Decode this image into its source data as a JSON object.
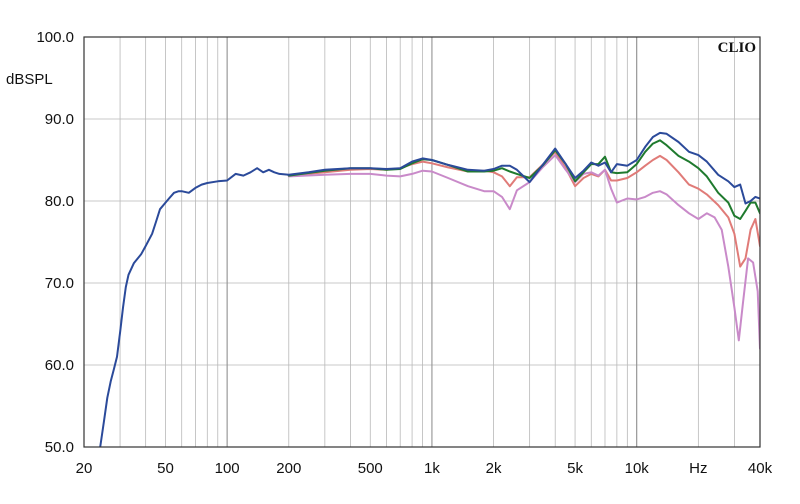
{
  "chart_data": {
    "type": "line",
    "brand": "CLIO",
    "ylabel": "dBSPL",
    "xunit": "Hz",
    "xscale": "log",
    "xlim": [
      20,
      40000
    ],
    "ylim": [
      50,
      100
    ],
    "grid": true,
    "ytick_labels": [
      "100.0",
      "90.0",
      "80.0",
      "70.0",
      "60.0",
      "50.0"
    ],
    "ytick_values": [
      100,
      90,
      80,
      70,
      60,
      50
    ],
    "xtick_labels": [
      "20",
      "50",
      "100",
      "200",
      "500",
      "1k",
      "2k",
      "5k",
      "10k",
      "Hz",
      "40k"
    ],
    "xtick_values": [
      20,
      50,
      100,
      200,
      500,
      1000,
      2000,
      5000,
      10000,
      20000,
      40000
    ],
    "series": [
      {
        "color": "#e07b78",
        "points": [
          [
            200,
            83.1
          ],
          [
            300,
            83.5
          ],
          [
            400,
            83.8
          ],
          [
            500,
            83.9
          ],
          [
            600,
            83.8
          ],
          [
            700,
            84.0
          ],
          [
            800,
            84.5
          ],
          [
            900,
            84.8
          ],
          [
            1000,
            84.6
          ],
          [
            1200,
            84.1
          ],
          [
            1500,
            83.6
          ],
          [
            1800,
            83.7
          ],
          [
            2000,
            83.5
          ],
          [
            2200,
            83.0
          ],
          [
            2400,
            81.8
          ],
          [
            2600,
            82.9
          ],
          [
            3000,
            82.9
          ],
          [
            3500,
            84.5
          ],
          [
            4000,
            86.0
          ],
          [
            4500,
            84.0
          ],
          [
            5000,
            81.8
          ],
          [
            5500,
            82.8
          ],
          [
            6000,
            83.3
          ],
          [
            6500,
            83.0
          ],
          [
            7000,
            83.8
          ],
          [
            7500,
            82.5
          ],
          [
            8000,
            82.5
          ],
          [
            9000,
            82.8
          ],
          [
            10000,
            83.5
          ],
          [
            11000,
            84.3
          ],
          [
            12000,
            85.0
          ],
          [
            13000,
            85.5
          ],
          [
            14000,
            85.0
          ],
          [
            16000,
            83.5
          ],
          [
            18000,
            82.0
          ],
          [
            20000,
            81.5
          ],
          [
            22000,
            80.8
          ],
          [
            25000,
            79.5
          ],
          [
            28000,
            78.0
          ],
          [
            30000,
            76.0
          ],
          [
            32000,
            72.0
          ],
          [
            34000,
            73.0
          ],
          [
            36000,
            76.5
          ],
          [
            38000,
            77.8
          ],
          [
            40000,
            74.5
          ]
        ]
      },
      {
        "color": "#c98ac9",
        "points": [
          [
            200,
            83.0
          ],
          [
            300,
            83.2
          ],
          [
            400,
            83.3
          ],
          [
            500,
            83.3
          ],
          [
            600,
            83.1
          ],
          [
            700,
            83.0
          ],
          [
            800,
            83.3
          ],
          [
            900,
            83.7
          ],
          [
            1000,
            83.6
          ],
          [
            1200,
            82.8
          ],
          [
            1500,
            81.8
          ],
          [
            1800,
            81.2
          ],
          [
            2000,
            81.2
          ],
          [
            2200,
            80.5
          ],
          [
            2400,
            79.0
          ],
          [
            2600,
            81.3
          ],
          [
            3000,
            82.3
          ],
          [
            3500,
            84.2
          ],
          [
            4000,
            85.6
          ],
          [
            4500,
            83.8
          ],
          [
            5000,
            82.3
          ],
          [
            5500,
            83.3
          ],
          [
            6000,
            83.5
          ],
          [
            6500,
            83.1
          ],
          [
            7000,
            83.8
          ],
          [
            7500,
            81.5
          ],
          [
            8000,
            79.8
          ],
          [
            9000,
            80.3
          ],
          [
            10000,
            80.2
          ],
          [
            11000,
            80.5
          ],
          [
            12000,
            81.0
          ],
          [
            13000,
            81.2
          ],
          [
            14000,
            80.8
          ],
          [
            16000,
            79.5
          ],
          [
            18000,
            78.5
          ],
          [
            20000,
            77.8
          ],
          [
            22000,
            78.5
          ],
          [
            24000,
            78.0
          ],
          [
            26000,
            76.5
          ],
          [
            28000,
            72.0
          ],
          [
            30000,
            67.0
          ],
          [
            31500,
            63.0
          ],
          [
            33000,
            67.5
          ],
          [
            35000,
            73.0
          ],
          [
            37000,
            72.5
          ],
          [
            39000,
            69.0
          ],
          [
            40000,
            62.0
          ]
        ]
      },
      {
        "color": "#1f7a2e",
        "points": [
          [
            200,
            83.1
          ],
          [
            300,
            83.7
          ],
          [
            400,
            84.0
          ],
          [
            500,
            84.0
          ],
          [
            600,
            83.8
          ],
          [
            700,
            83.9
          ],
          [
            800,
            84.6
          ],
          [
            900,
            85.1
          ],
          [
            1000,
            85.0
          ],
          [
            1200,
            84.4
          ],
          [
            1500,
            83.6
          ],
          [
            1800,
            83.6
          ],
          [
            2000,
            83.7
          ],
          [
            2200,
            84.0
          ],
          [
            2400,
            83.6
          ],
          [
            2600,
            83.3
          ],
          [
            3000,
            82.8
          ],
          [
            3500,
            84.4
          ],
          [
            4000,
            86.2
          ],
          [
            4500,
            84.5
          ],
          [
            5000,
            82.4
          ],
          [
            5500,
            83.5
          ],
          [
            6000,
            84.5
          ],
          [
            6500,
            84.5
          ],
          [
            7000,
            85.4
          ],
          [
            7500,
            83.5
          ],
          [
            8000,
            83.4
          ],
          [
            9000,
            83.5
          ],
          [
            10000,
            84.5
          ],
          [
            11000,
            86.0
          ],
          [
            12000,
            87.0
          ],
          [
            13000,
            87.4
          ],
          [
            14000,
            86.8
          ],
          [
            16000,
            85.5
          ],
          [
            18000,
            84.8
          ],
          [
            20000,
            84.0
          ],
          [
            22000,
            83.0
          ],
          [
            25000,
            81.0
          ],
          [
            28000,
            79.8
          ],
          [
            30000,
            78.2
          ],
          [
            32000,
            77.8
          ],
          [
            34000,
            78.8
          ],
          [
            36000,
            79.8
          ],
          [
            38000,
            79.8
          ],
          [
            40000,
            78.5
          ]
        ]
      },
      {
        "color": "#2b4a9a",
        "points": [
          [
            23,
            49
          ],
          [
            24,
            50
          ],
          [
            25,
            53
          ],
          [
            26,
            56
          ],
          [
            27,
            58
          ],
          [
            28,
            59.5
          ],
          [
            29,
            61
          ],
          [
            30,
            64
          ],
          [
            31,
            67
          ],
          [
            32,
            69.5
          ],
          [
            33,
            71
          ],
          [
            35,
            72.4
          ],
          [
            38,
            73.5
          ],
          [
            40,
            74.5
          ],
          [
            43,
            76
          ],
          [
            45,
            77.5
          ],
          [
            47,
            79
          ],
          [
            50,
            79.8
          ],
          [
            52,
            80.3
          ],
          [
            55,
            81.0
          ],
          [
            58,
            81.2
          ],
          [
            60,
            81.2
          ],
          [
            65,
            81.0
          ],
          [
            70,
            81.6
          ],
          [
            75,
            82.0
          ],
          [
            80,
            82.2
          ],
          [
            90,
            82.4
          ],
          [
            100,
            82.5
          ],
          [
            110,
            83.3
          ],
          [
            120,
            83.1
          ],
          [
            130,
            83.5
          ],
          [
            140,
            84.0
          ],
          [
            150,
            83.5
          ],
          [
            160,
            83.8
          ],
          [
            170,
            83.5
          ],
          [
            180,
            83.3
          ],
          [
            200,
            83.2
          ],
          [
            250,
            83.5
          ],
          [
            300,
            83.8
          ],
          [
            400,
            84.0
          ],
          [
            500,
            84.0
          ],
          [
            600,
            83.9
          ],
          [
            700,
            84.0
          ],
          [
            800,
            84.8
          ],
          [
            900,
            85.2
          ],
          [
            1000,
            85.0
          ],
          [
            1200,
            84.4
          ],
          [
            1500,
            83.8
          ],
          [
            1800,
            83.7
          ],
          [
            2000,
            83.9
          ],
          [
            2200,
            84.3
          ],
          [
            2400,
            84.3
          ],
          [
            2600,
            83.8
          ],
          [
            3000,
            82.3
          ],
          [
            3500,
            84.5
          ],
          [
            4000,
            86.4
          ],
          [
            4500,
            84.5
          ],
          [
            5000,
            82.8
          ],
          [
            5500,
            83.7
          ],
          [
            6000,
            84.7
          ],
          [
            6500,
            84.3
          ],
          [
            7000,
            84.7
          ],
          [
            7500,
            83.5
          ],
          [
            8000,
            84.5
          ],
          [
            9000,
            84.3
          ],
          [
            10000,
            85.0
          ],
          [
            11000,
            86.6
          ],
          [
            12000,
            87.8
          ],
          [
            13000,
            88.3
          ],
          [
            14000,
            88.2
          ],
          [
            16000,
            87.2
          ],
          [
            18000,
            86.0
          ],
          [
            20000,
            85.6
          ],
          [
            22000,
            84.8
          ],
          [
            25000,
            83.2
          ],
          [
            28000,
            82.4
          ],
          [
            30000,
            81.7
          ],
          [
            32000,
            82.0
          ],
          [
            34000,
            79.7
          ],
          [
            36000,
            80.0
          ],
          [
            38000,
            80.5
          ],
          [
            40000,
            80.3
          ]
        ]
      }
    ]
  }
}
